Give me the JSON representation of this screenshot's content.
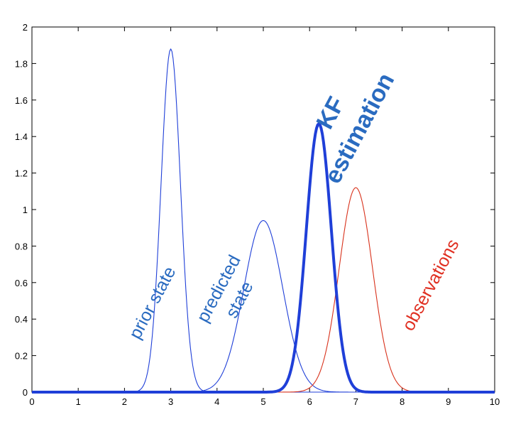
{
  "chart_data": {
    "type": "line",
    "xlim": [
      0,
      10
    ],
    "ylim": [
      0,
      2
    ],
    "xticks": [
      "0",
      "1",
      "2",
      "3",
      "4",
      "5",
      "6",
      "7",
      "8",
      "9",
      "10"
    ],
    "yticks": [
      "0",
      "0.2",
      "0.4",
      "0.6",
      "0.8",
      "1",
      "1.2",
      "1.4",
      "1.6",
      "1.8",
      "2"
    ],
    "grid": false,
    "series": [
      {
        "mean": 3.0,
        "peak": 1.88,
        "sigma": 0.21,
        "color": "#1f3fd8",
        "weight": "thin"
      },
      {
        "mean": 5.0,
        "peak": 0.94,
        "sigma": 0.42,
        "color": "#1f3fd8",
        "weight": "thin"
      },
      {
        "mean": 7.0,
        "peak": 1.12,
        "sigma": 0.36,
        "color": "#d8321c",
        "weight": "thin"
      },
      {
        "mean": 6.2,
        "peak": 1.47,
        "sigma": 0.27,
        "color": "#1f3fd8",
        "weight": "thick"
      }
    ],
    "annotations": [
      {
        "lines": [
          "prior state"
        ],
        "color": "#2a6bc0",
        "weight": "normal"
      },
      {
        "lines": [
          "predicted",
          "state"
        ],
        "color": "#2a6bc0",
        "weight": "normal"
      },
      {
        "lines": [
          "KF",
          "estimation"
        ],
        "color": "#2a6bc0",
        "weight": "bold"
      },
      {
        "lines": [
          "observations"
        ],
        "color": "#e03022",
        "weight": "normal"
      }
    ]
  }
}
